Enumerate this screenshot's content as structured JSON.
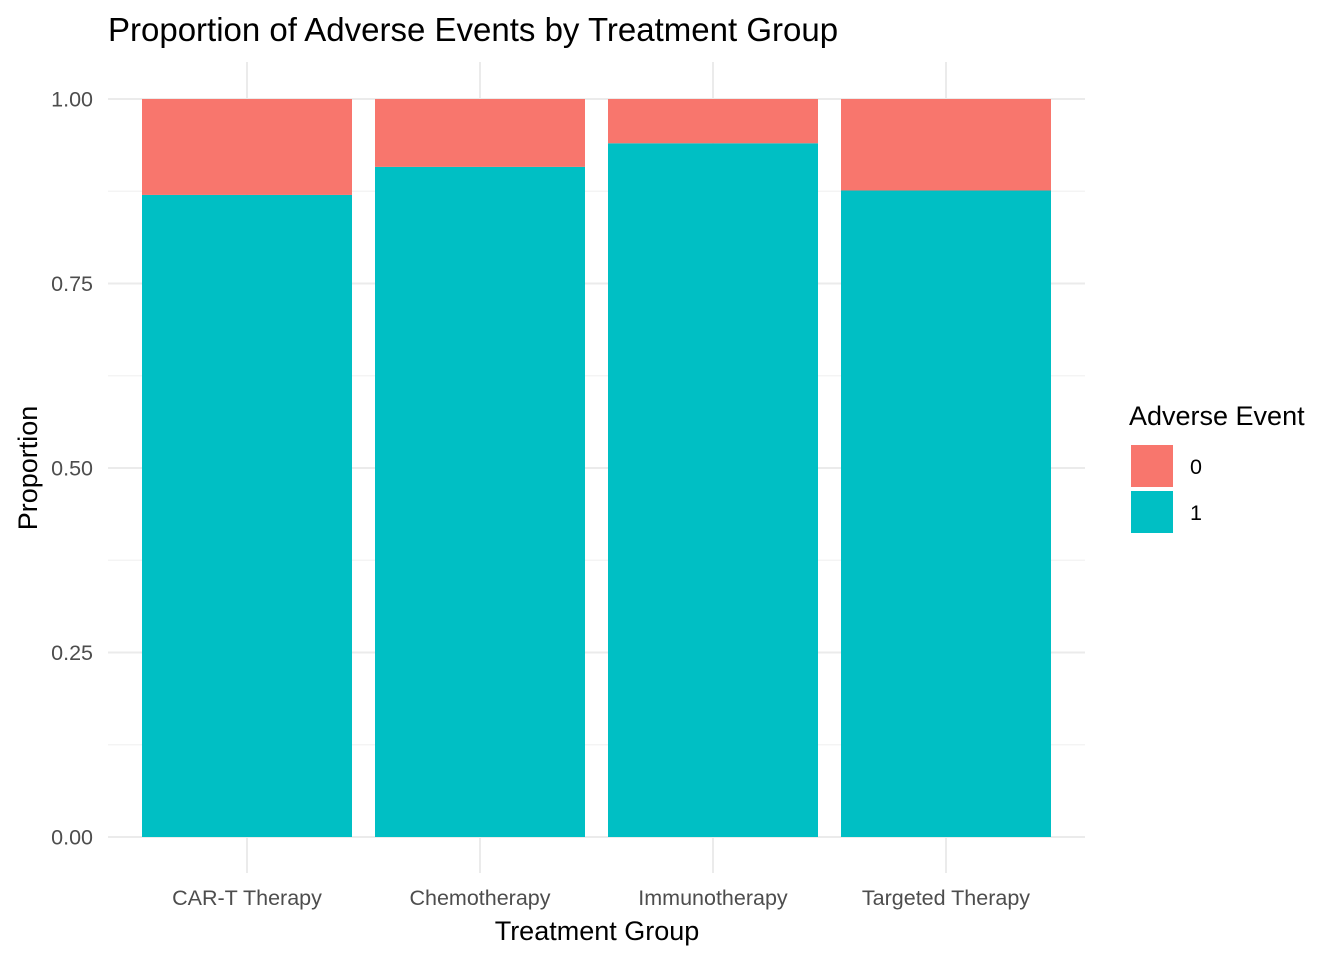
{
  "chart_data": {
    "type": "bar",
    "stacked": true,
    "title": "Proportion of Adverse Events by Treatment Group",
    "xlabel": "Treatment Group",
    "ylabel": "Proportion",
    "categories": [
      "CAR-T Therapy",
      "Chemotherapy",
      "Immunotherapy",
      "Targeted Therapy"
    ],
    "ylim": [
      0,
      1
    ],
    "yticks": [
      "0.00",
      "0.25",
      "0.50",
      "0.75",
      "1.00"
    ],
    "ytick_values": [
      0,
      0.25,
      0.5,
      0.75,
      1
    ],
    "series": [
      {
        "name": "0",
        "color": "#F8766D",
        "values": [
          0.13,
          0.092,
          0.06,
          0.124
        ]
      },
      {
        "name": "1",
        "color": "#00BFC4",
        "values": [
          0.87,
          0.908,
          0.94,
          0.876
        ]
      }
    ],
    "legend": {
      "title": "Adverse Event",
      "position": "right"
    },
    "grid": true
  }
}
